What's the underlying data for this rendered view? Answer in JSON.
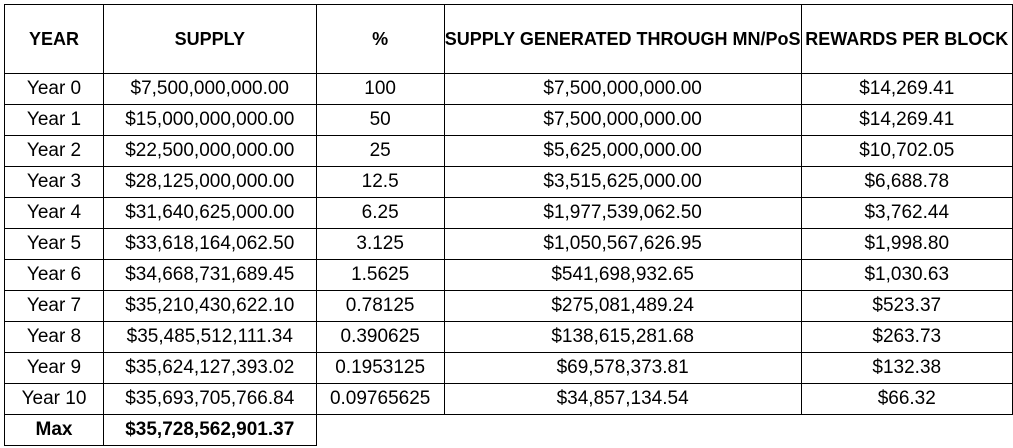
{
  "table": {
    "headers": [
      "YEAR",
      "SUPPLY",
      "%",
      "SUPPLY GENERATED THROUGH MN/PoS",
      "REWARDS PER BLOCK"
    ],
    "rows": [
      [
        "Year 0",
        "$7,500,000,000.00",
        "100",
        "$7,500,000,000.00",
        "$14,269.41"
      ],
      [
        "Year 1",
        "$15,000,000,000.00",
        "50",
        "$7,500,000,000.00",
        "$14,269.41"
      ],
      [
        "Year 2",
        "$22,500,000,000.00",
        "25",
        "$5,625,000,000.00",
        "$10,702.05"
      ],
      [
        "Year 3",
        "$28,125,000,000.00",
        "12.5",
        "$3,515,625,000.00",
        "$6,688.78"
      ],
      [
        "Year 4",
        "$31,640,625,000.00",
        "6.25",
        "$1,977,539,062.50",
        "$3,762.44"
      ],
      [
        "Year 5",
        "$33,618,164,062.50",
        "3.125",
        "$1,050,567,626.95",
        "$1,998.80"
      ],
      [
        "Year 6",
        "$34,668,731,689.45",
        "1.5625",
        "$541,698,932.65",
        "$1,030.63"
      ],
      [
        "Year 7",
        "$35,210,430,622.10",
        "0.78125",
        "$275,081,489.24",
        "$523.37"
      ],
      [
        "Year 8",
        "$35,485,512,111.34",
        "0.390625",
        "$138,615,281.68",
        "$263.73"
      ],
      [
        "Year 9",
        "$35,624,127,393.02",
        "0.1953125",
        "$69,578,373.81",
        "$132.38"
      ],
      [
        "Year 10",
        "$35,693,705,766.84",
        "0.09765625",
        "$34,857,134.54",
        "$66.32"
      ]
    ],
    "max_row": {
      "label": "Max",
      "value": "$35,728,562,901.37"
    }
  }
}
